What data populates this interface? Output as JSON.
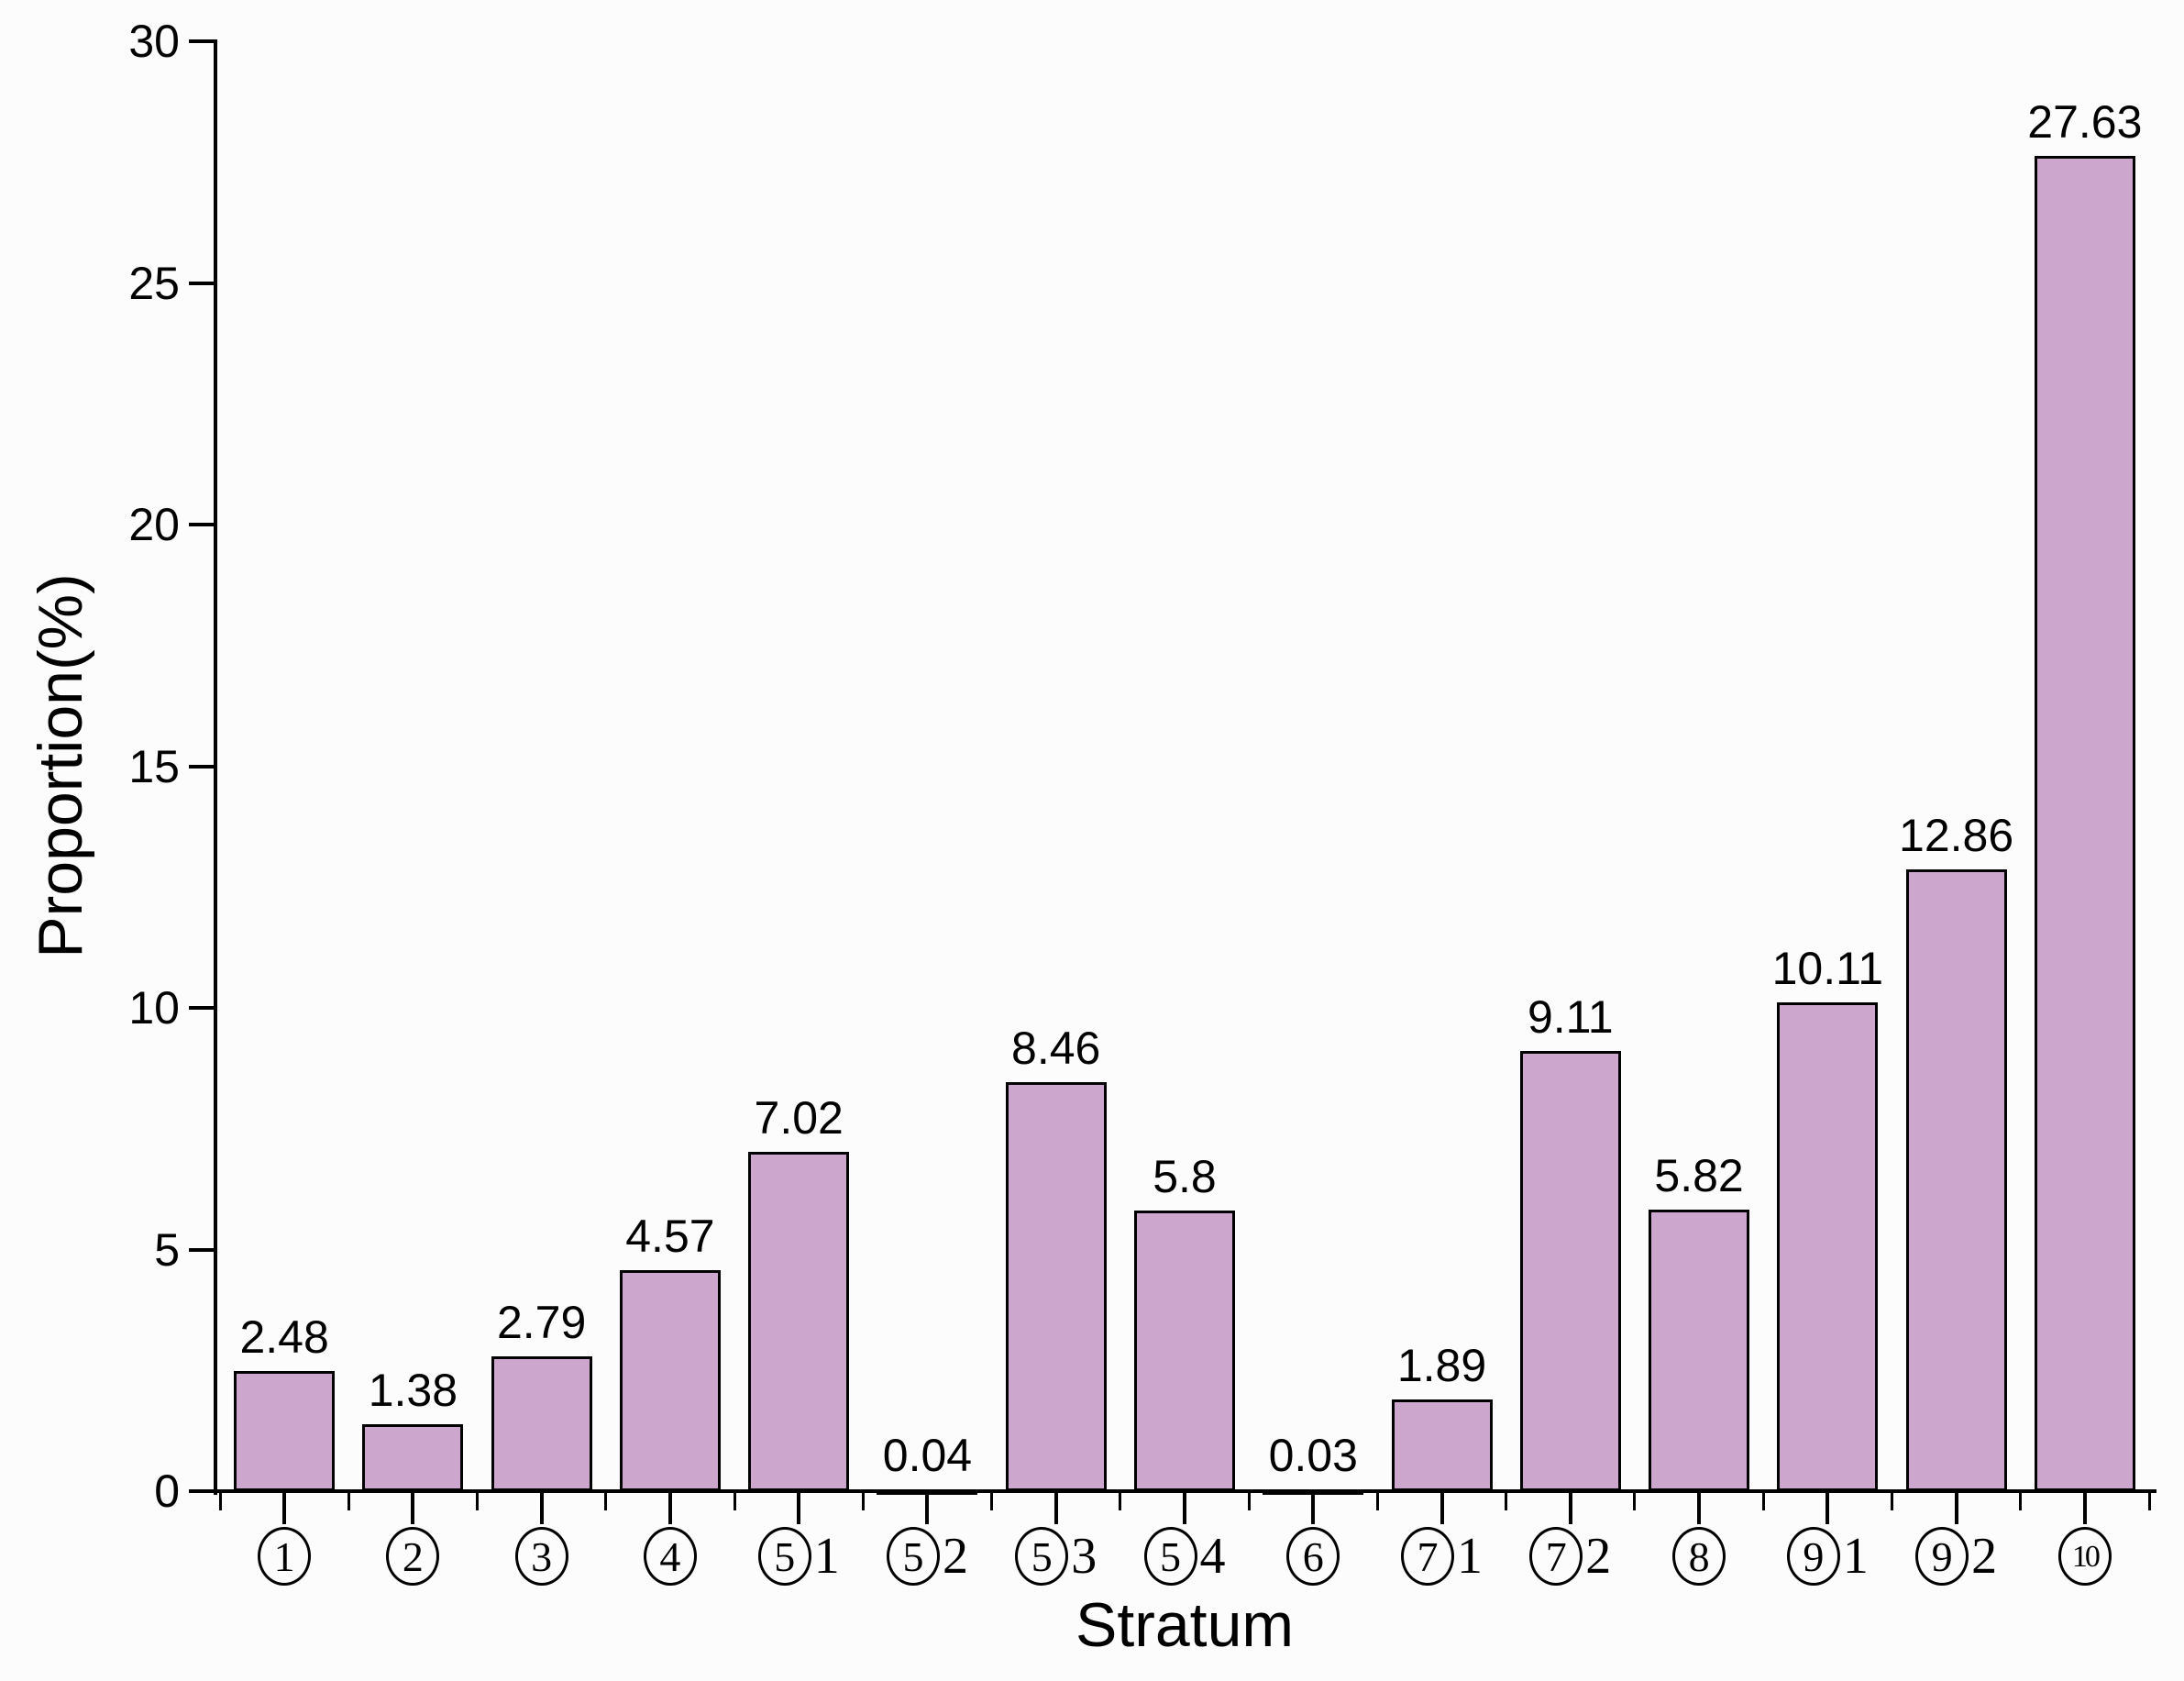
{
  "chart_data": {
    "type": "bar",
    "title": "",
    "xlabel": "Stratum",
    "ylabel": "Proportion(%)",
    "ylim": [
      0,
      30
    ],
    "yticks": [
      0,
      5,
      10,
      15,
      20,
      25,
      30
    ],
    "grid": false,
    "legend": "none",
    "bar_fill_color": "#cda6ce",
    "bar_border_color": "#000000",
    "axis_color": "#000000",
    "categories": [
      "①",
      "②",
      "③",
      "④",
      "⑤1",
      "⑤2",
      "⑤3",
      "⑤4",
      "⑥",
      "⑦1",
      "⑦2",
      "⑧",
      "⑨1",
      "⑨2",
      "⑩"
    ],
    "category_parts": [
      {
        "circle": "1",
        "suffix": ""
      },
      {
        "circle": "2",
        "suffix": ""
      },
      {
        "circle": "3",
        "suffix": ""
      },
      {
        "circle": "4",
        "suffix": ""
      },
      {
        "circle": "5",
        "suffix": "1"
      },
      {
        "circle": "5",
        "suffix": "2"
      },
      {
        "circle": "5",
        "suffix": "3"
      },
      {
        "circle": "5",
        "suffix": "4"
      },
      {
        "circle": "6",
        "suffix": ""
      },
      {
        "circle": "7",
        "suffix": "1"
      },
      {
        "circle": "7",
        "suffix": "2"
      },
      {
        "circle": "8",
        "suffix": ""
      },
      {
        "circle": "9",
        "suffix": "1"
      },
      {
        "circle": "9",
        "suffix": "2"
      },
      {
        "circle": "10",
        "suffix": ""
      }
    ],
    "values": [
      2.48,
      1.38,
      2.79,
      4.57,
      7.02,
      0.04,
      8.46,
      5.8,
      0.03,
      1.89,
      9.11,
      5.82,
      10.11,
      12.86,
      27.63
    ],
    "value_labels": [
      "2.48",
      "1.38",
      "2.79",
      "4.57",
      "7.02",
      "0.04",
      "8.46",
      "5.8",
      "0.03",
      "1.89",
      "9.11",
      "5.82",
      "10.11",
      "12.86",
      "27.63"
    ]
  }
}
